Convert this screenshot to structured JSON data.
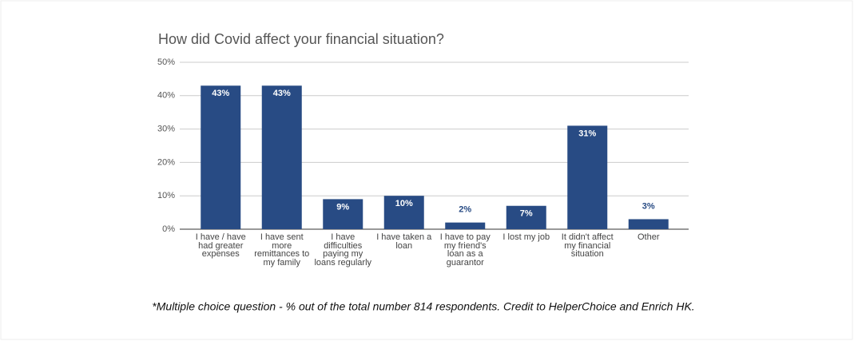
{
  "chart_data": {
    "type": "bar",
    "title": "How did Covid affect your financial situation?",
    "categories": [
      "I have / have had greater expenses",
      "I have sent more remittances to my family",
      "I have difficulties paying my loans regularly",
      "I have taken a loan",
      "I have to pay my friend's loan as a guarantor",
      "I lost my job",
      "It didn't affect my financial situation",
      "Other"
    ],
    "values": [
      43,
      43,
      9,
      10,
      2,
      7,
      31,
      3
    ],
    "value_labels": [
      "43%",
      "43%",
      "9%",
      "10%",
      "2%",
      "7%",
      "31%",
      "3%"
    ],
    "color": "#284b84",
    "ylim": [
      0,
      50
    ],
    "yticks": [
      {
        "value": 0,
        "label": "0%"
      },
      {
        "value": 10,
        "label": "10%"
      },
      {
        "value": 20,
        "label": "20%"
      },
      {
        "value": 30,
        "label": "30%"
      },
      {
        "value": 40,
        "label": "40%"
      },
      {
        "value": 50,
        "label": "50%"
      }
    ],
    "grid": true,
    "footnote": "*Multiple choice question - % out of the total number 814 respondents. Credit to HelperChoice and Enrich HK."
  }
}
